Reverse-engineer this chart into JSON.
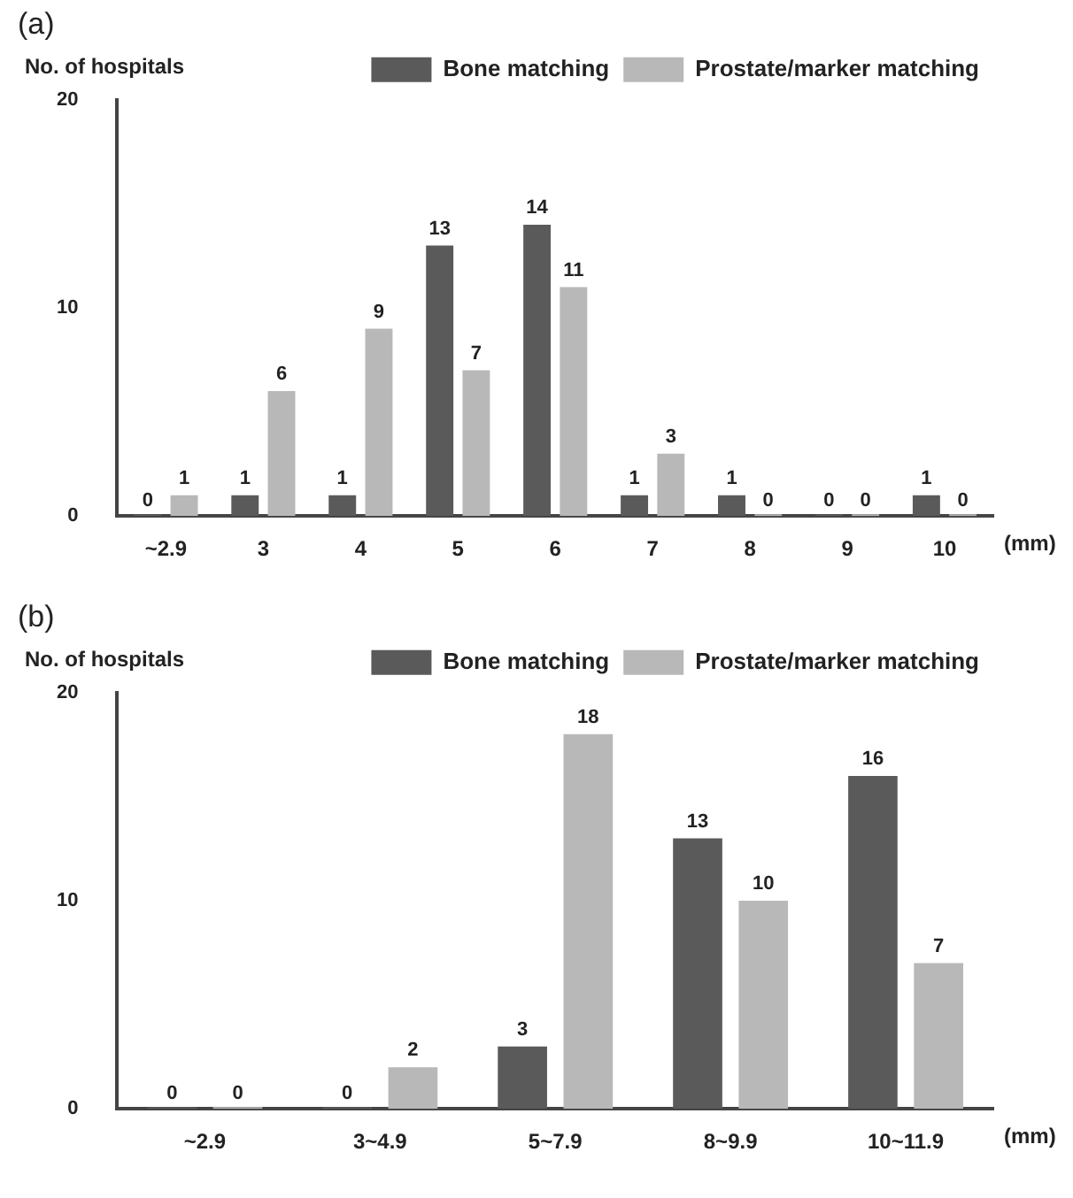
{
  "chart_data": [
    {
      "type": "bar",
      "title": "(a)",
      "ylabel": "No. of hospitals",
      "xlabel": "(mm)",
      "categories": [
        "~2.9",
        "3",
        "4",
        "5",
        "6",
        "7",
        "8",
        "9",
        "10"
      ],
      "series": [
        {
          "name": "Bone matching",
          "color": "#5a5a5a",
          "values": [
            0,
            1,
            1,
            13,
            14,
            1,
            1,
            0,
            1
          ]
        },
        {
          "name": "Prostate/marker matching",
          "color": "#b8b8b8",
          "values": [
            1,
            6,
            9,
            7,
            11,
            3,
            0,
            0,
            0
          ]
        }
      ],
      "ylim": [
        0,
        20
      ],
      "yticks": [
        0,
        10,
        20
      ],
      "grid": false,
      "legend": "top right",
      "data_labels": true
    },
    {
      "type": "bar",
      "title": "(b)",
      "ylabel": "No. of hospitals",
      "xlabel": "(mm)",
      "categories": [
        "~2.9",
        "3~4.9",
        "5~7.9",
        "8~9.9",
        "10~11.9"
      ],
      "series": [
        {
          "name": "Bone matching",
          "color": "#5a5a5a",
          "values": [
            0,
            0,
            3,
            13,
            16
          ]
        },
        {
          "name": "Prostate/marker matching",
          "color": "#b8b8b8",
          "values": [
            0,
            2,
            18,
            10,
            7
          ]
        }
      ],
      "ylim": [
        0,
        20
      ],
      "yticks": [
        0,
        10,
        20
      ],
      "grid": false,
      "legend": "top right",
      "data_labels": true
    }
  ]
}
